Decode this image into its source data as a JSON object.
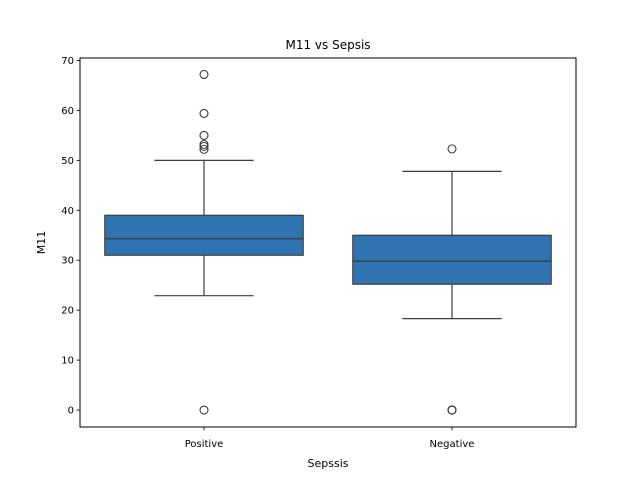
{
  "chart_data": {
    "type": "box",
    "title": "M11 vs Sepsis",
    "xlabel": "Sepssis",
    "ylabel": "M11",
    "ylim": [
      -3.4,
      70.5
    ],
    "yticks": [
      0,
      10,
      20,
      30,
      40,
      50,
      60,
      70
    ],
    "categories": [
      "Positive",
      "Negative"
    ],
    "color": "#2f73b1",
    "edge_color": "#3d3d3d",
    "boxes": [
      {
        "category": "Positive",
        "whisker_low": 22.9,
        "q1": 31.0,
        "median": 34.3,
        "q3": 39.0,
        "whisker_high": 50.0,
        "outliers": [
          0,
          52.2,
          52.8,
          53.2,
          55.0,
          59.4,
          67.2
        ]
      },
      {
        "category": "Negative",
        "whisker_low": 18.3,
        "q1": 25.2,
        "median": 29.8,
        "q3": 35.0,
        "whisker_high": 47.8,
        "outliers": [
          0,
          0,
          0,
          52.3
        ]
      }
    ],
    "grid": false,
    "legend": "none"
  }
}
